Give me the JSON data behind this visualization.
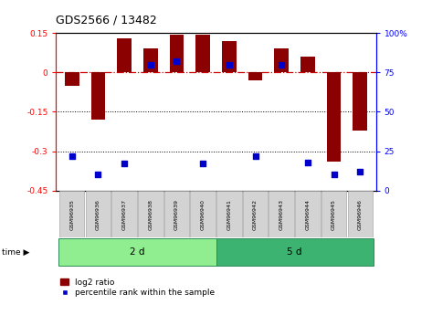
{
  "title": "GDS2566 / 13482",
  "samples": [
    "GSM96935",
    "GSM96936",
    "GSM96937",
    "GSM96938",
    "GSM96939",
    "GSM96940",
    "GSM96941",
    "GSM96942",
    "GSM96943",
    "GSM96944",
    "GSM96945",
    "GSM96946"
  ],
  "log2_ratio": [
    -0.05,
    -0.18,
    0.13,
    0.09,
    0.145,
    0.145,
    0.12,
    -0.03,
    0.09,
    0.06,
    -0.34,
    -0.22
  ],
  "percentile_rank": [
    22,
    10,
    17,
    80,
    82,
    17,
    80,
    22,
    80,
    18,
    10,
    12
  ],
  "groups": [
    {
      "label": "2 d",
      "start": 0,
      "end": 6,
      "color": "#90EE90"
    },
    {
      "label": "5 d",
      "start": 6,
      "end": 12,
      "color": "#3CB371"
    }
  ],
  "ylim": [
    -0.45,
    0.15
  ],
  "yticks_left": [
    0.15,
    0.0,
    -0.15,
    -0.3,
    -0.45
  ],
  "yticks_right": [
    100,
    75,
    50,
    25,
    0
  ],
  "bar_color": "#8B0000",
  "dot_color": "#0000CD",
  "zero_line_color": "#CC0000",
  "grid_line_color": "#000000",
  "legend_bar_label": "log2 ratio",
  "legend_dot_label": "percentile rank within the sample",
  "bar_width": 0.55,
  "group_colors": [
    "#90EE90",
    "#3CB371"
  ],
  "label_box_color": "#D3D3D3",
  "label_box_edge_color": "#AAAAAA"
}
